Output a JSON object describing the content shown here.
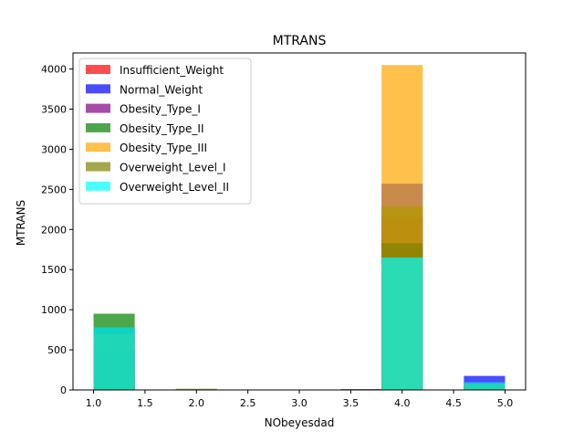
{
  "chart_data": {
    "type": "bar",
    "title": "MTRANS",
    "xlabel": "NObeyesdad",
    "ylabel": "MTRANS",
    "xlim": [
      0.8,
      5.2
    ],
    "ylim": [
      0,
      4200
    ],
    "xticks": [
      1.0,
      1.5,
      2.0,
      2.5,
      3.0,
      3.5,
      4.0,
      4.5,
      5.0
    ],
    "xtick_labels": [
      "1.0",
      "1.5",
      "2.0",
      "2.5",
      "3.0",
      "3.5",
      "4.0",
      "4.5",
      "5.0"
    ],
    "yticks": [
      0,
      500,
      1000,
      1500,
      2000,
      2500,
      3000,
      3500,
      4000
    ],
    "ytick_labels": [
      "0",
      "500",
      "1000",
      "1500",
      "2000",
      "2500",
      "3000",
      "3500",
      "4000"
    ],
    "bin_edges": [
      1.0,
      1.4,
      1.8,
      2.2,
      2.6,
      3.0,
      3.4,
      3.8,
      4.2,
      4.6,
      5.0
    ],
    "grid": false,
    "legend_position": "upper-left",
    "series": [
      {
        "name": "Insufficient_Weight",
        "color": "#ff0000",
        "opacity": 0.7,
        "values": [
          170,
          0,
          0,
          0,
          0,
          0,
          0,
          1820,
          0,
          90
        ]
      },
      {
        "name": "Normal_Weight",
        "color": "#0000ff",
        "opacity": 0.7,
        "values": [
          490,
          0,
          10,
          0,
          0,
          0,
          10,
          2570,
          0,
          175
        ]
      },
      {
        "name": "Obesity_Type_I",
        "color": "#800080",
        "opacity": 0.7,
        "values": [
          780,
          0,
          5,
          0,
          0,
          0,
          5,
          2160,
          0,
          90
        ]
      },
      {
        "name": "Obesity_Type_II",
        "color": "#008000",
        "opacity": 0.7,
        "values": [
          950,
          0,
          0,
          0,
          0,
          0,
          0,
          2290,
          0,
          60
        ]
      },
      {
        "name": "Obesity_Type_III",
        "color": "#ffa500",
        "opacity": 0.7,
        "values": [
          0,
          0,
          0,
          0,
          0,
          0,
          0,
          4050,
          0,
          0
        ]
      },
      {
        "name": "Overweight_Level_I",
        "color": "#808000",
        "opacity": 0.7,
        "values": [
          700,
          0,
          15,
          0,
          0,
          0,
          0,
          1830,
          0,
          80
        ]
      },
      {
        "name": "Overweight_Level_II",
        "color": "#00ffff",
        "opacity": 0.7,
        "values": [
          780,
          0,
          10,
          0,
          0,
          0,
          0,
          1650,
          0,
          95
        ]
      }
    ]
  }
}
